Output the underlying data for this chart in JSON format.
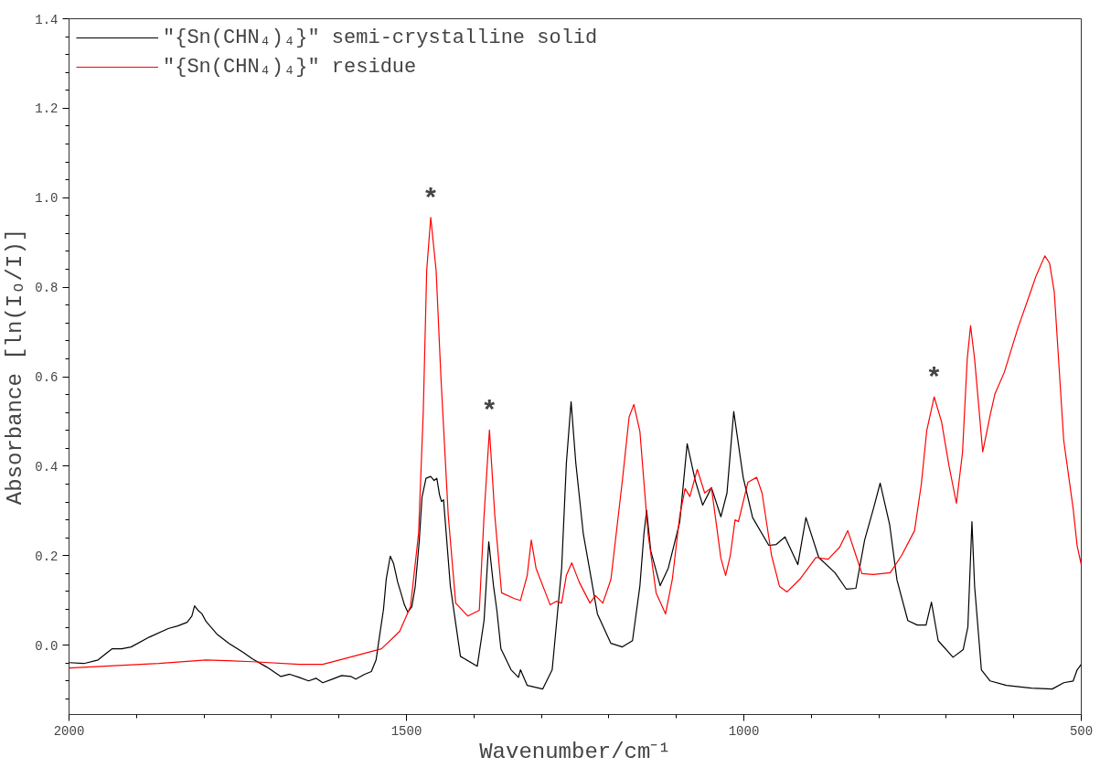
{
  "chart_data": {
    "type": "line",
    "xlabel": "Wavenumber/cm⁻¹",
    "ylabel": "Absorbance [ln(Iₒ/I)]",
    "xlim": [
      2000,
      500
    ],
    "xticks": [
      2000,
      {
        "value": 1900,
        "label": null
      },
      {
        "value": 1800,
        "label": null
      },
      {
        "value": 1700,
        "label": null
      },
      {
        "value": 1600,
        "label": null
      },
      1500,
      {
        "value": 1400,
        "label": null
      },
      {
        "value": 1300,
        "label": null
      },
      {
        "value": 1200,
        "label": null
      },
      {
        "value": 1100,
        "label": null
      },
      1000,
      {
        "value": 900,
        "label": null
      },
      {
        "value": 800,
        "label": null
      },
      {
        "value": 700,
        "label": null
      },
      {
        "value": 600,
        "label": null
      },
      500
    ],
    "ylim": [
      -0.155,
      1.4
    ],
    "yticks": [
      {
        "value": -0.12,
        "label": null
      },
      {
        "value": -0.08,
        "label": null
      },
      {
        "value": -0.04,
        "label": null
      },
      {
        "value": 0,
        "label": "0.0"
      },
      {
        "value": 0.04,
        "label": null
      },
      {
        "value": 0.08,
        "label": null
      },
      {
        "value": 0.12,
        "label": null
      },
      {
        "value": 0.16,
        "label": null
      },
      0.2,
      {
        "value": 0.24,
        "label": null
      },
      {
        "value": 0.28,
        "label": null
      },
      {
        "value": 0.32,
        "label": null
      },
      {
        "value": 0.36,
        "label": null
      },
      0.4,
      {
        "value": 0.44,
        "label": null
      },
      {
        "value": 0.48,
        "label": null
      },
      {
        "value": 0.52,
        "label": null
      },
      {
        "value": 0.56,
        "label": null
      },
      0.6,
      {
        "value": 0.64,
        "label": null
      },
      {
        "value": 0.68,
        "label": null
      },
      {
        "value": 0.72,
        "label": null
      },
      {
        "value": 0.76,
        "label": null
      },
      0.8,
      {
        "value": 0.84,
        "label": null
      },
      {
        "value": 0.88,
        "label": null
      },
      {
        "value": 0.92,
        "label": null
      },
      {
        "value": 0.96,
        "label": null
      },
      {
        "value": 1.0,
        "label": "1.0"
      },
      {
        "value": 1.04,
        "label": null
      },
      {
        "value": 1.08,
        "label": null
      },
      {
        "value": 1.12,
        "label": null
      },
      {
        "value": 1.16,
        "label": null
      },
      1.2,
      {
        "value": 1.24,
        "label": null
      },
      {
        "value": 1.28,
        "label": null
      },
      {
        "value": 1.32,
        "label": null
      },
      {
        "value": 1.36,
        "label": null
      },
      1.4
    ],
    "grid": false,
    "legend": "top left",
    "line_style": "solid",
    "annotations": [
      {
        "text": "*",
        "x": 1464,
        "y": 0.956
      },
      {
        "text": "*",
        "x": 1377,
        "y": 0.481
      },
      {
        "text": "*",
        "x": 718,
        "y": 0.555
      }
    ],
    "series": [
      {
        "name": "\"{Sn(CHN₄)₄}\" semi-crystalline solid",
        "color": "#000000",
        "x": [
          2000,
          1978,
          1957,
          1943,
          1936,
          1922,
          1908,
          1881,
          1853,
          1839,
          1825,
          1818,
          1814,
          1809,
          1803,
          1797,
          1781,
          1763,
          1742,
          1728,
          1707,
          1686,
          1673,
          1659,
          1645,
          1634,
          1624,
          1610,
          1596,
          1582,
          1575,
          1562,
          1552,
          1545,
          1539,
          1534,
          1530,
          1524,
          1519,
          1513,
          1507,
          1503,
          1498,
          1492,
          1487,
          1481,
          1477,
          1471,
          1464,
          1459,
          1455,
          1451,
          1448,
          1445,
          1435,
          1420,
          1395,
          1385,
          1378,
          1371,
          1366,
          1360,
          1345,
          1334,
          1331,
          1321,
          1298,
          1284,
          1270,
          1263,
          1256,
          1249,
          1238,
          1217,
          1197,
          1180,
          1165,
          1154,
          1148,
          1144,
          1138,
          1124,
          1112,
          1095,
          1084,
          1072,
          1061,
          1048,
          1034,
          1025,
          1015,
          1001,
          987,
          963,
          952,
          939,
          920,
          908,
          889,
          865,
          848,
          834,
          821,
          808,
          798,
          784,
          773,
          757,
          743,
          730,
          722,
          712,
          690,
          675,
          668,
          662,
          658,
          648,
          635,
          611,
          574,
          543,
          526,
          512,
          506,
          500
        ],
        "values": [
          -0.039,
          -0.041,
          -0.033,
          -0.016,
          -0.008,
          -0.008,
          -0.004,
          0.018,
          0.037,
          0.043,
          0.051,
          0.065,
          0.088,
          0.078,
          0.07,
          0.053,
          0.025,
          0.004,
          -0.016,
          -0.031,
          -0.049,
          -0.07,
          -0.065,
          -0.072,
          -0.08,
          -0.074,
          -0.084,
          -0.076,
          -0.068,
          -0.07,
          -0.076,
          -0.065,
          -0.059,
          -0.033,
          0.029,
          0.08,
          0.147,
          0.199,
          0.182,
          0.141,
          0.111,
          0.09,
          0.074,
          0.086,
          0.131,
          0.233,
          0.33,
          0.373,
          0.377,
          0.368,
          0.373,
          0.336,
          0.321,
          0.325,
          0.133,
          -0.025,
          -0.047,
          0.055,
          0.231,
          0.133,
          0.078,
          -0.008,
          -0.055,
          -0.072,
          -0.055,
          -0.09,
          -0.098,
          -0.055,
          0.172,
          0.407,
          0.544,
          0.407,
          0.25,
          0.07,
          0.004,
          -0.004,
          0.01,
          0.133,
          0.25,
          0.301,
          0.211,
          0.133,
          0.172,
          0.275,
          0.45,
          0.368,
          0.313,
          0.352,
          0.287,
          0.34,
          0.522,
          0.375,
          0.285,
          0.223,
          0.225,
          0.242,
          0.18,
          0.285,
          0.196,
          0.162,
          0.125,
          0.127,
          0.235,
          0.305,
          0.362,
          0.27,
          0.145,
          0.055,
          0.045,
          0.045,
          0.096,
          0.01,
          -0.027,
          -0.01,
          0.041,
          0.276,
          0.131,
          -0.055,
          -0.08,
          -0.09,
          -0.096,
          -0.098,
          -0.084,
          -0.08,
          -0.055,
          -0.043
        ]
      },
      {
        "name": "\"{Sn(CHN₄)₄}\" residue",
        "color": "#ff0000",
        "x": [
          2000,
          1867,
          1797,
          1728,
          1659,
          1624,
          1589,
          1537,
          1510,
          1494,
          1482,
          1475,
          1470,
          1464,
          1456,
          1449,
          1438,
          1427,
          1409,
          1392,
          1385,
          1377,
          1369,
          1359,
          1340,
          1331,
          1321,
          1315,
          1308,
          1287,
          1278,
          1270,
          1263,
          1255,
          1244,
          1228,
          1220,
          1209,
          1197,
          1180,
          1170,
          1163,
          1154,
          1142,
          1130,
          1116,
          1106,
          1095,
          1087,
          1080,
          1069,
          1058,
          1048,
          1034,
          1027,
          1020,
          1013,
          1008,
          994,
          981,
          973,
          959,
          947,
          936,
          916,
          893,
          875,
          858,
          846,
          834,
          825,
          808,
          783,
          766,
          747,
          737,
          729,
          718,
          707,
          696,
          685,
          676,
          669,
          664,
          658,
          646,
          635,
          628,
          614,
          594,
          575,
          567,
          554,
          547,
          540,
          526,
          512,
          506,
          500
        ],
        "values": [
          -0.051,
          -0.041,
          -0.033,
          -0.037,
          -0.043,
          -0.043,
          -0.029,
          -0.008,
          0.031,
          0.086,
          0.25,
          0.524,
          0.837,
          0.956,
          0.837,
          0.602,
          0.289,
          0.094,
          0.065,
          0.078,
          0.289,
          0.481,
          0.289,
          0.117,
          0.104,
          0.1,
          0.156,
          0.235,
          0.172,
          0.09,
          0.098,
          0.094,
          0.156,
          0.184,
          0.141,
          0.094,
          0.111,
          0.094,
          0.147,
          0.368,
          0.51,
          0.538,
          0.477,
          0.25,
          0.117,
          0.07,
          0.147,
          0.289,
          0.35,
          0.332,
          0.393,
          0.34,
          0.352,
          0.194,
          0.156,
          0.201,
          0.28,
          0.276,
          0.364,
          0.375,
          0.34,
          0.201,
          0.131,
          0.119,
          0.149,
          0.196,
          0.192,
          0.219,
          0.256,
          0.201,
          0.16,
          0.158,
          0.162,
          0.201,
          0.256,
          0.36,
          0.479,
          0.555,
          0.499,
          0.401,
          0.317,
          0.43,
          0.639,
          0.714,
          0.639,
          0.432,
          0.514,
          0.561,
          0.61,
          0.708,
          0.79,
          0.825,
          0.87,
          0.854,
          0.79,
          0.458,
          0.305,
          0.221,
          0.18
        ]
      }
    ]
  }
}
